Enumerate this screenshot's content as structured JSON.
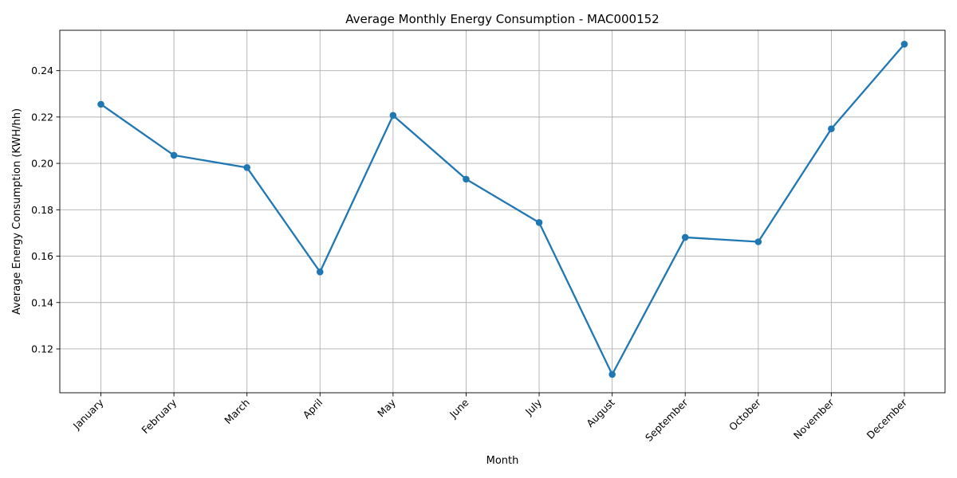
{
  "chart_data": {
    "type": "line",
    "title": "Average Monthly Energy Consumption - MAC000152",
    "xlabel": "Month",
    "ylabel": "Average Energy Consumption (KWH/hh)",
    "categories": [
      "January",
      "February",
      "March",
      "April",
      "May",
      "June",
      "July",
      "August",
      "September",
      "October",
      "November",
      "December"
    ],
    "series": [
      {
        "values": [
          0.2255,
          0.2035,
          0.1982,
          0.1532,
          0.2207,
          0.1932,
          0.1745,
          0.109,
          0.1681,
          0.1662,
          0.2149,
          0.2514
        ],
        "color": "#1f77b4",
        "marker": "circle"
      }
    ],
    "ylim": [
      0.1011,
      0.2574
    ],
    "yticks": [
      "0.12",
      "0.14",
      "0.16",
      "0.18",
      "0.20",
      "0.22",
      "0.24"
    ],
    "grid": true,
    "legend": "none"
  }
}
